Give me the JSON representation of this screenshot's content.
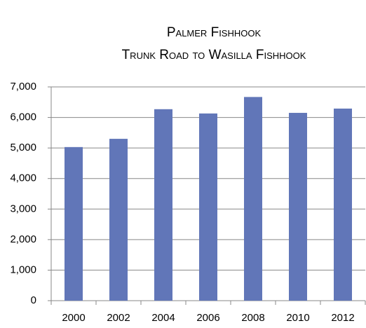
{
  "chart_data": {
    "type": "bar",
    "title": "Palmer Fishhook",
    "subtitle": "Trunk Road to Wasilla Fishhook",
    "categories": [
      "2000",
      "2002",
      "2004",
      "2006",
      "2008",
      "2010",
      "2012"
    ],
    "values": [
      5030,
      5300,
      6270,
      6130,
      6670,
      6150,
      6290
    ],
    "color": "#6176b8",
    "ylim": [
      0,
      7000
    ],
    "yticks": [
      0,
      {
        "value": 1000,
        "label": "1,000"
      },
      {
        "value": 2000,
        "label": "2,000"
      },
      {
        "value": 3000,
        "label": "3,000"
      },
      {
        "value": 4000,
        "label": "4,000"
      },
      {
        "value": 5000,
        "label": "5,000"
      },
      {
        "value": 6000,
        "label": "6,000"
      },
      {
        "value": 7000,
        "label": "7,000"
      }
    ],
    "grid": true
  }
}
